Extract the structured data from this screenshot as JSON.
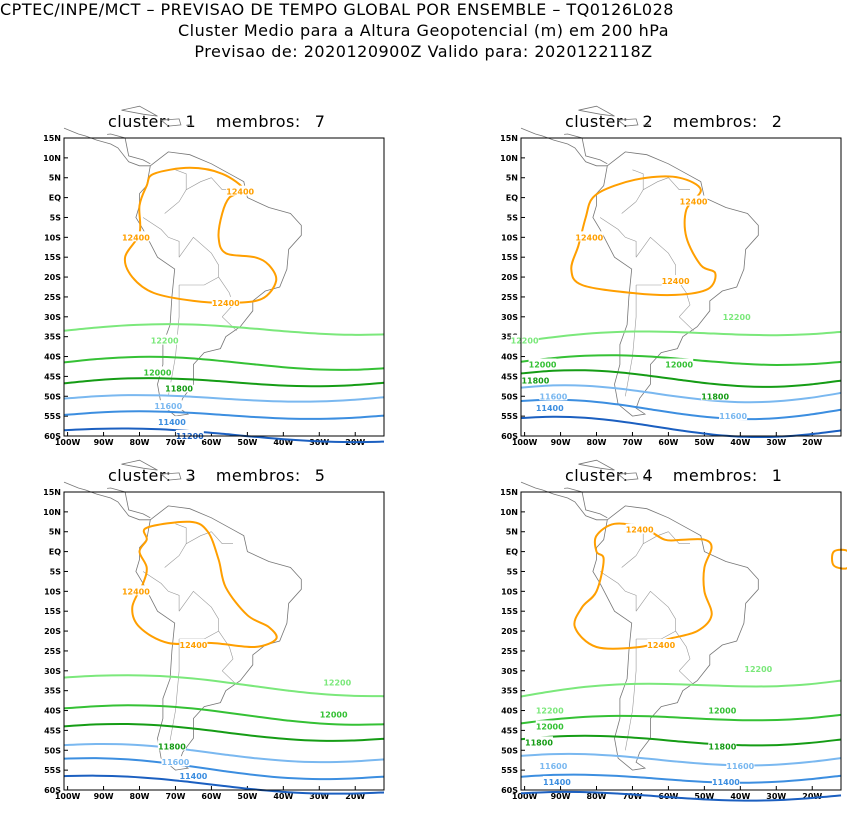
{
  "header": {
    "line1": "CPTEC/INPE/MCT – PREVISAO DE TEMPO GLOBAL POR ENSEMBLE – TQ0126L028",
    "line2": "Cluster Medio para a Altura Geopotencial (m) em 200 hPa",
    "line3": "Previsao de: 2020120900Z    Valido para: 2020122118Z"
  },
  "axes": {
    "lat_labels": [
      "15N",
      "10N",
      "5N",
      "EQ",
      "5S",
      "10S",
      "15S",
      "20S",
      "25S",
      "30S",
      "35S",
      "40S",
      "45S",
      "50S",
      "55S",
      "60S"
    ],
    "lon_labels": [
      "100W",
      "90W",
      "80W",
      "70W",
      "60W",
      "50W",
      "40W",
      "30W",
      "20W"
    ]
  },
  "level_colors": {
    "12400": "#ff9f00",
    "12200": "#7be87b",
    "12000": "#35c135",
    "11800": "#159c15",
    "11600": "#7ab8f0",
    "11400": "#3c8ee0",
    "11200": "#1b5fc0"
  },
  "panels": [
    {
      "cluster_label": "cluster:",
      "cluster_value": "1",
      "members_label": "membros:",
      "members_value": "7",
      "labels": [
        {
          "text": "12400",
          "lon": -52,
          "lat": 1.5
        },
        {
          "text": "12400",
          "lon": -81,
          "lat": -10
        },
        {
          "text": "12400",
          "lon": -56,
          "lat": -26.5
        },
        {
          "text": "12200",
          "lon": -73,
          "lat": -36
        },
        {
          "text": "12000",
          "lon": -75,
          "lat": -44
        },
        {
          "text": "11800",
          "lon": -69,
          "lat": -48
        },
        {
          "text": "11600",
          "lon": -72,
          "lat": -52.5
        },
        {
          "text": "11400",
          "lon": -71,
          "lat": -56.5
        },
        {
          "text": "11200",
          "lon": -66,
          "lat": -60
        }
      ]
    },
    {
      "cluster_label": "cluster:",
      "cluster_value": "2",
      "members_label": "membros:",
      "members_value": "2",
      "labels": [
        {
          "text": "12400",
          "lon": -53,
          "lat": -1
        },
        {
          "text": "12400",
          "lon": -82,
          "lat": -10
        },
        {
          "text": "12400",
          "lon": -58,
          "lat": -21
        },
        {
          "text": "12200",
          "lon": -41,
          "lat": -30
        },
        {
          "text": "12200",
          "lon": -100,
          "lat": -36
        },
        {
          "text": "12000",
          "lon": -95,
          "lat": -42
        },
        {
          "text": "12000",
          "lon": -57,
          "lat": -42
        },
        {
          "text": "11800",
          "lon": -97,
          "lat": -46
        },
        {
          "text": "11800",
          "lon": -47,
          "lat": -50
        },
        {
          "text": "11600",
          "lon": -92,
          "lat": -50
        },
        {
          "text": "11600",
          "lon": -42,
          "lat": -55
        },
        {
          "text": "11400",
          "lon": -93,
          "lat": -53
        }
      ]
    },
    {
      "cluster_label": "cluster:",
      "cluster_value": "3",
      "members_label": "membros:",
      "members_value": "5",
      "labels": [
        {
          "text": "12400",
          "lon": -81,
          "lat": -10
        },
        {
          "text": "12400",
          "lon": -65,
          "lat": -23.5
        },
        {
          "text": "12200",
          "lon": -25,
          "lat": -33
        },
        {
          "text": "12000",
          "lon": -26,
          "lat": -41
        },
        {
          "text": "11800",
          "lon": -71,
          "lat": -49
        },
        {
          "text": "11600",
          "lon": -70,
          "lat": -53
        },
        {
          "text": "11400",
          "lon": -65,
          "lat": -56.5
        }
      ]
    },
    {
      "cluster_label": "cluster:",
      "cluster_value": "4",
      "members_label": "membros:",
      "members_value": "1",
      "labels": [
        {
          "text": "12400",
          "lon": -68,
          "lat": 5.5
        },
        {
          "text": "12400",
          "lon": -62,
          "lat": -23.5
        },
        {
          "text": "12200",
          "lon": -35,
          "lat": -29.5
        },
        {
          "text": "12200",
          "lon": -93,
          "lat": -40
        },
        {
          "text": "12000",
          "lon": -93,
          "lat": -44
        },
        {
          "text": "12000",
          "lon": -45,
          "lat": -40
        },
        {
          "text": "11800",
          "lon": -96,
          "lat": -48
        },
        {
          "text": "11800",
          "lon": -45,
          "lat": -49
        },
        {
          "text": "11600",
          "lon": -92,
          "lat": -54
        },
        {
          "text": "11600",
          "lon": -40,
          "lat": -54
        },
        {
          "text": "11400",
          "lon": -91,
          "lat": -58
        },
        {
          "text": "11400",
          "lon": -44,
          "lat": -58
        }
      ]
    }
  ]
}
